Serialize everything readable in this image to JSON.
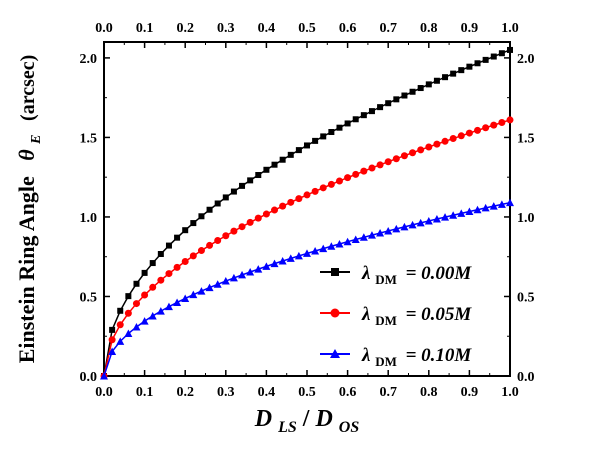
{
  "chart_data": {
    "type": "line",
    "xlabel": {
      "main": "D",
      "sub1": "LS",
      "sep": " / ",
      "main2": "D",
      "sub2": "OS"
    },
    "ylabel": {
      "text": "Einstein Ring Angle",
      "symbol": "θ",
      "symbol_sub": "E",
      "unit": "(arcsec)"
    },
    "xlim": [
      0.0,
      1.0
    ],
    "ylim": [
      0.0,
      2.1
    ],
    "x_ticks": [
      "0.0",
      "0.1",
      "0.2",
      "0.3",
      "0.4",
      "0.5",
      "0.6",
      "0.7",
      "0.8",
      "0.9",
      "1.0"
    ],
    "y_ticks": [
      "0.0",
      "0.5",
      "1.0",
      "1.5",
      "2.0"
    ],
    "grid": false,
    "legend_position": "lower-right",
    "series": [
      {
        "name": "= 0.00M",
        "legend_symbol": "λ",
        "legend_sub": "DM",
        "color": "#000000",
        "marker": "square",
        "amplitude": 2.05
      },
      {
        "name": "= 0.05M",
        "legend_symbol": "λ",
        "legend_sub": "DM",
        "color": "#ff0000",
        "marker": "circle",
        "amplitude": 1.61
      },
      {
        "name": "= 0.10M",
        "legend_symbol": "λ",
        "legend_sub": "DM",
        "color": "#0000ff",
        "marker": "triangle",
        "amplitude": 1.09
      }
    ],
    "x": [
      0.0,
      0.02,
      0.04,
      0.06,
      0.08,
      0.1,
      0.12,
      0.14,
      0.16,
      0.18,
      0.2,
      0.22,
      0.24,
      0.26,
      0.28,
      0.3,
      0.32,
      0.34,
      0.36,
      0.38,
      0.4,
      0.42,
      0.44,
      0.46,
      0.48,
      0.5,
      0.52,
      0.54,
      0.56,
      0.58,
      0.6,
      0.62,
      0.64,
      0.66,
      0.68,
      0.7,
      0.72,
      0.74,
      0.76,
      0.78,
      0.8,
      0.82,
      0.84,
      0.86,
      0.88,
      0.9,
      0.92,
      0.94,
      0.96,
      0.98,
      1.0
    ],
    "y_rule": "y = amplitude * sqrt(x)"
  }
}
